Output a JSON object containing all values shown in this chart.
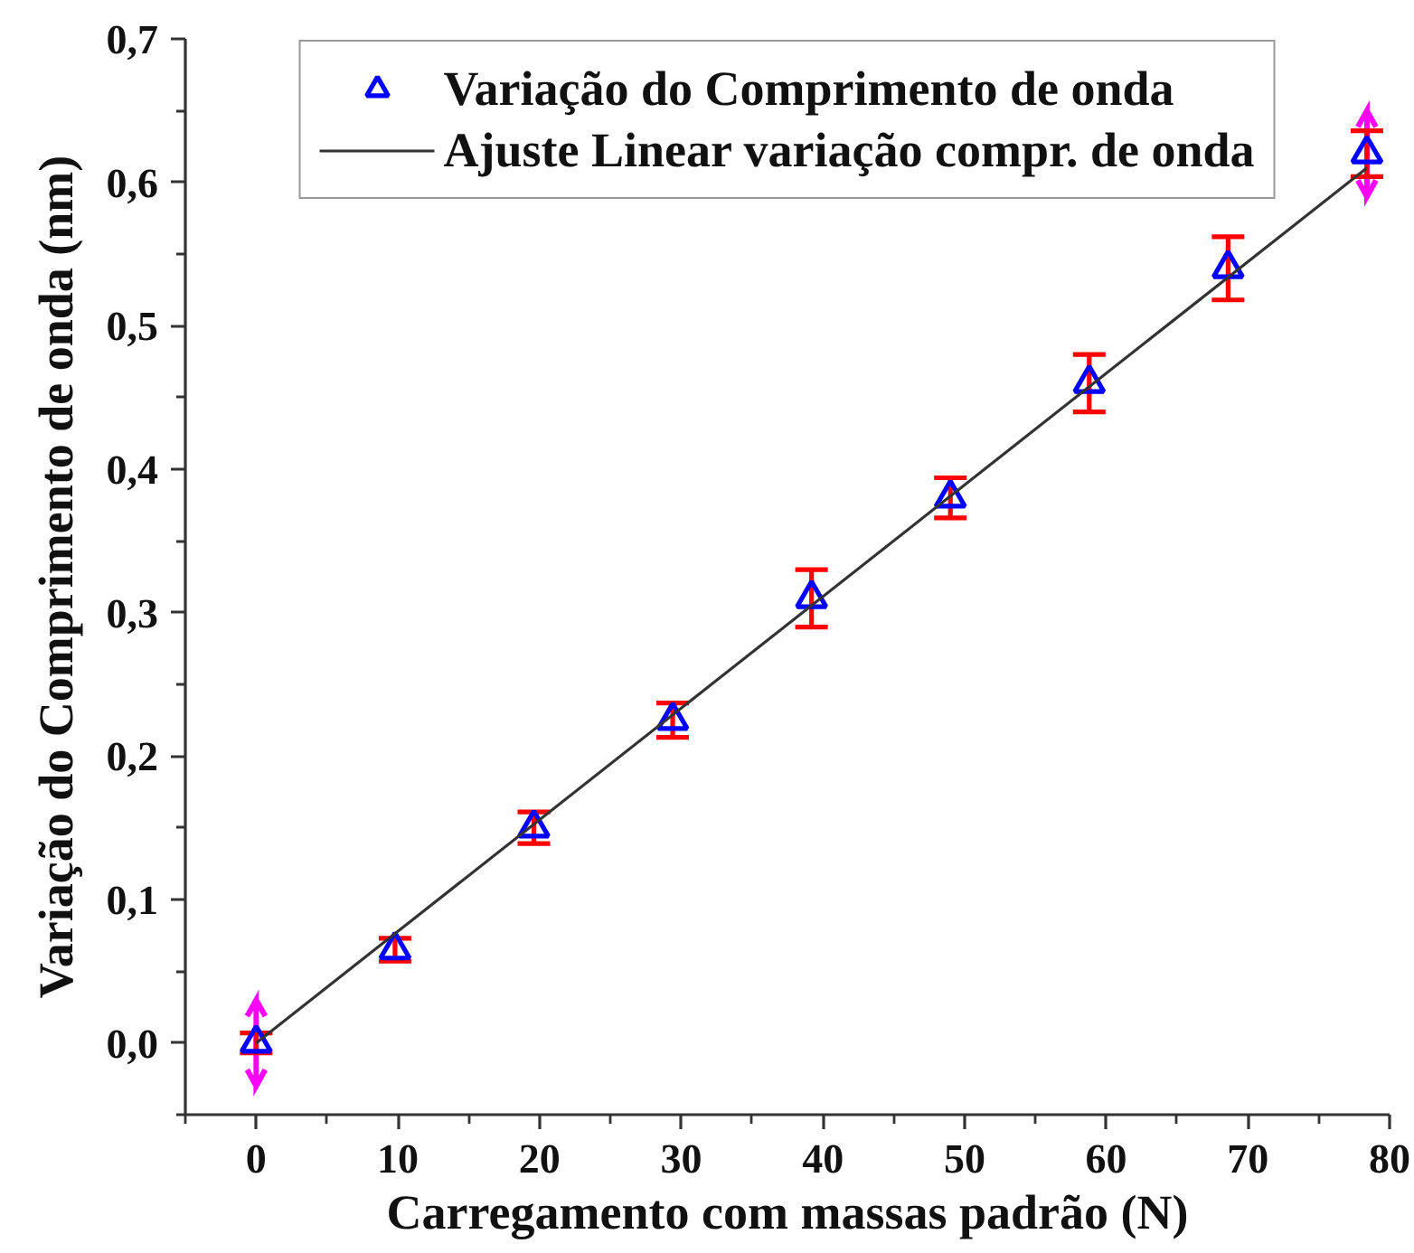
{
  "chart_data": {
    "type": "scatter",
    "xlabel": "Carregamento com massas padrão (N)",
    "ylabel": "Variação do Comprimento de onda (nm)",
    "xlim": [
      -5,
      80
    ],
    "xticks": [
      0,
      10,
      20,
      30,
      40,
      50,
      60,
      70,
      80
    ],
    "ylim": [
      -0.05,
      0.7
    ],
    "yticks": [
      {
        "value": 0,
        "label": "0,0"
      },
      {
        "value": 0.1,
        "label": "0,1"
      },
      {
        "value": 0.2,
        "label": "0,2"
      },
      {
        "value": 0.3,
        "label": "0,3"
      },
      {
        "value": 0.4,
        "label": "0,4"
      },
      {
        "value": 0.5,
        "label": "0,5"
      },
      {
        "value": 0.6,
        "label": "0,6"
      },
      {
        "value": 0.7,
        "label": "0,7"
      }
    ],
    "grid": false,
    "legend": "top",
    "series": [
      {
        "name": "Variação do Comprimento de onda",
        "marker": "triangle",
        "color": "#0000ff",
        "x": [
          0,
          9.8,
          19.6,
          29.4,
          39.2,
          49,
          58.8,
          68.6,
          78.4
        ],
        "values": [
          0,
          0.065,
          0.15,
          0.225,
          0.31,
          0.38,
          0.46,
          0.54,
          0.62
        ],
        "errors": [
          0.007,
          0.008,
          0.011,
          0.012,
          0.02,
          0.014,
          0.02,
          0.022,
          0.016
        ]
      },
      {
        "name": "Ajuste Linear variação compr. de onda",
        "type": "line",
        "color": "#333333",
        "x": [
          0,
          78.4
        ],
        "values": [
          0,
          0.61
        ],
        "errors": [
          [
            -0.03,
            0.03
          ],
          [
            0.59,
            0.65
          ]
        ]
      }
    ]
  }
}
